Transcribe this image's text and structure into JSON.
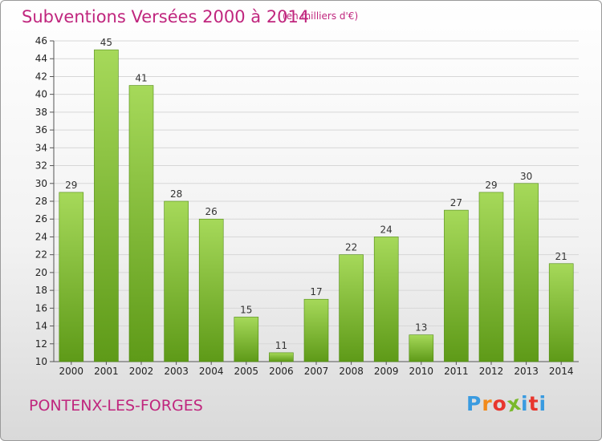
{
  "header": {
    "title": "Subventions Versées 2000 à 2014",
    "subtitle": "(en milliers d'€)"
  },
  "footer": {
    "commune": "PONTENX-LES-FORGES",
    "logo_text": "Proxiti",
    "logo_colors": [
      "#3a9be0",
      "#f28a1a",
      "#e8362d",
      "#79b92a",
      "#3a9be0",
      "#e8362d",
      "#3a9be0"
    ]
  },
  "colors": {
    "text_accent": "#c0267e",
    "bar_top": "#a6d95a",
    "bar_bottom": "#5e9a18",
    "bar_border": "#4f8a12"
  },
  "chart_data": {
    "type": "bar",
    "categories": [
      "2000",
      "2001",
      "2002",
      "2003",
      "2004",
      "2005",
      "2006",
      "2007",
      "2008",
      "2009",
      "2010",
      "2011",
      "2012",
      "2013",
      "2014"
    ],
    "values": [
      29,
      45,
      41,
      28,
      26,
      15,
      11,
      17,
      22,
      24,
      13,
      27,
      29,
      30,
      21
    ],
    "ylim": [
      10,
      46
    ],
    "yticks": [
      10,
      12,
      14,
      16,
      18,
      20,
      22,
      24,
      26,
      28,
      30,
      32,
      34,
      36,
      38,
      40,
      42,
      44,
      46
    ],
    "grid": true,
    "legend": "none"
  }
}
